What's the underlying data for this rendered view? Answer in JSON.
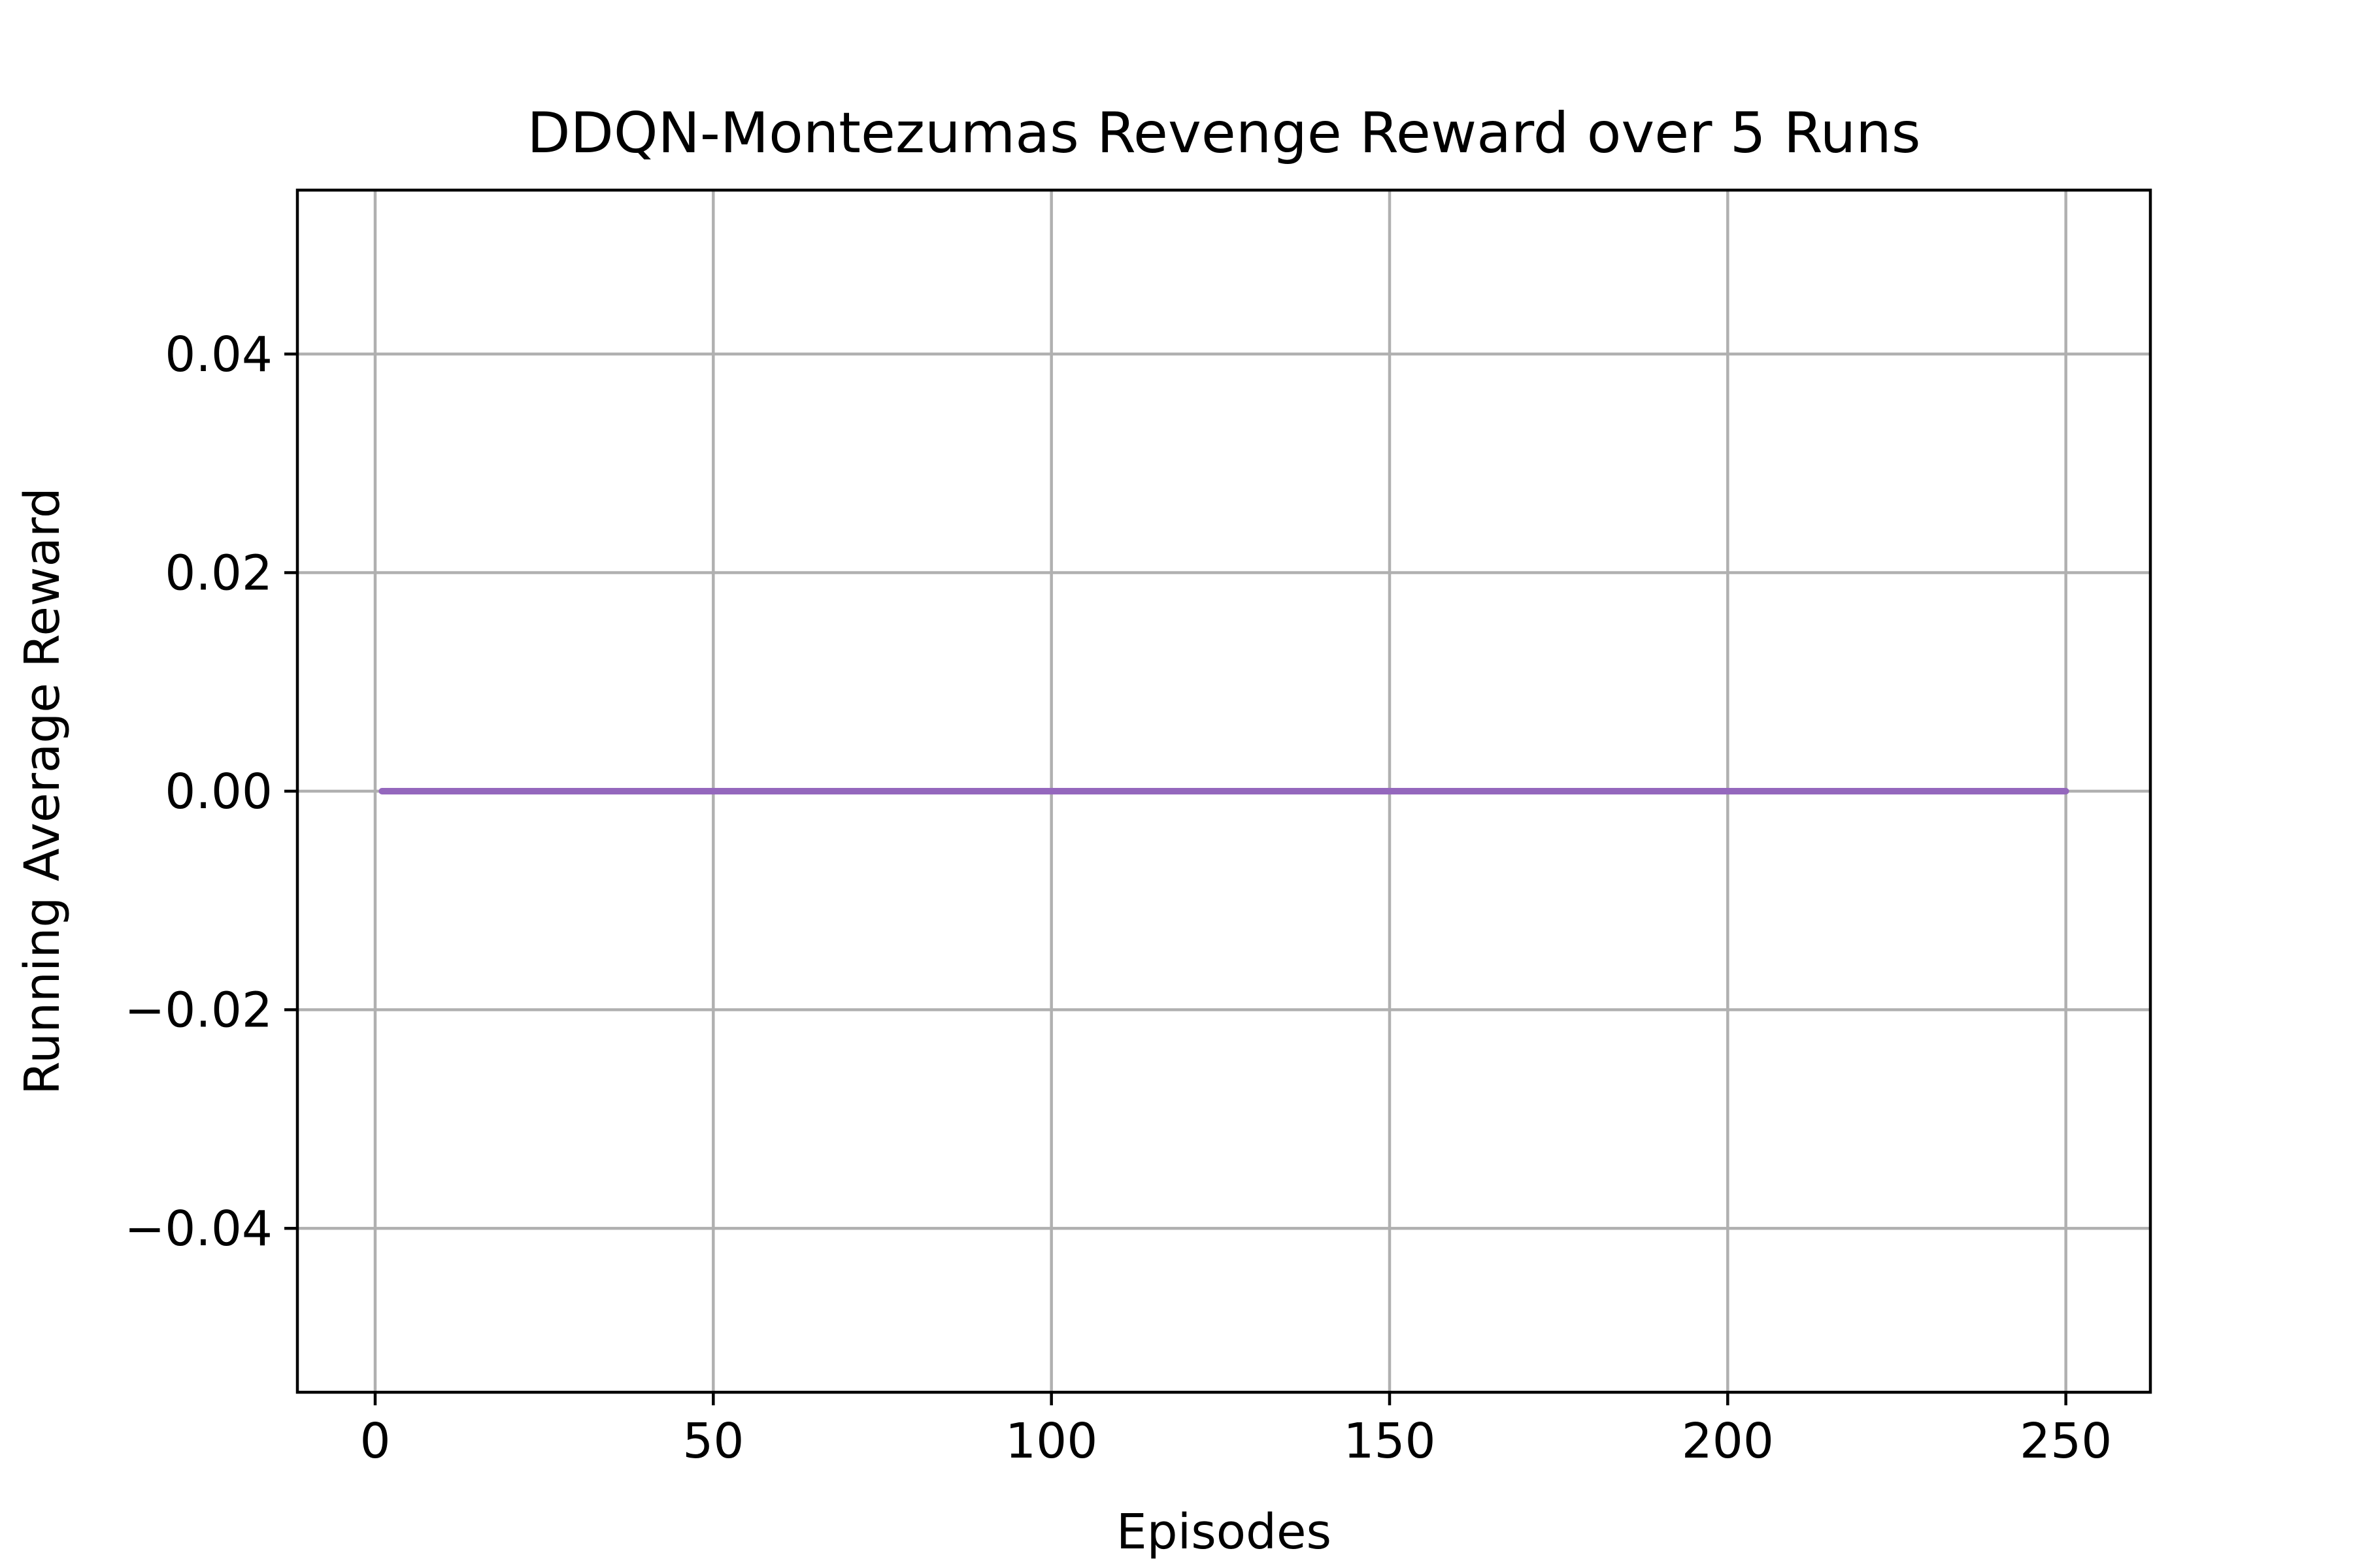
{
  "chart_data": {
    "type": "line",
    "title": "DDQN-Montezumas Revenge Reward over 5 Runs",
    "xlabel": "Episodes",
    "ylabel": "Running Average Reward",
    "xlim": [
      -11.5,
      262.5
    ],
    "ylim": [
      -0.055,
      0.055
    ],
    "xticks": [
      0,
      50,
      100,
      150,
      200,
      250
    ],
    "xtick_labels": [
      "0",
      "50",
      "100",
      "150",
      "200",
      "250"
    ],
    "yticks": [
      -0.04,
      -0.02,
      0.0,
      0.02,
      0.04
    ],
    "ytick_labels": [
      "−0.04",
      "−0.02",
      "0.00",
      "0.02",
      "0.04"
    ],
    "grid": true,
    "series": [
      {
        "x": [
          1,
          250
        ],
        "y": [
          0.0,
          0.0
        ],
        "color": "#9467bd"
      }
    ]
  }
}
